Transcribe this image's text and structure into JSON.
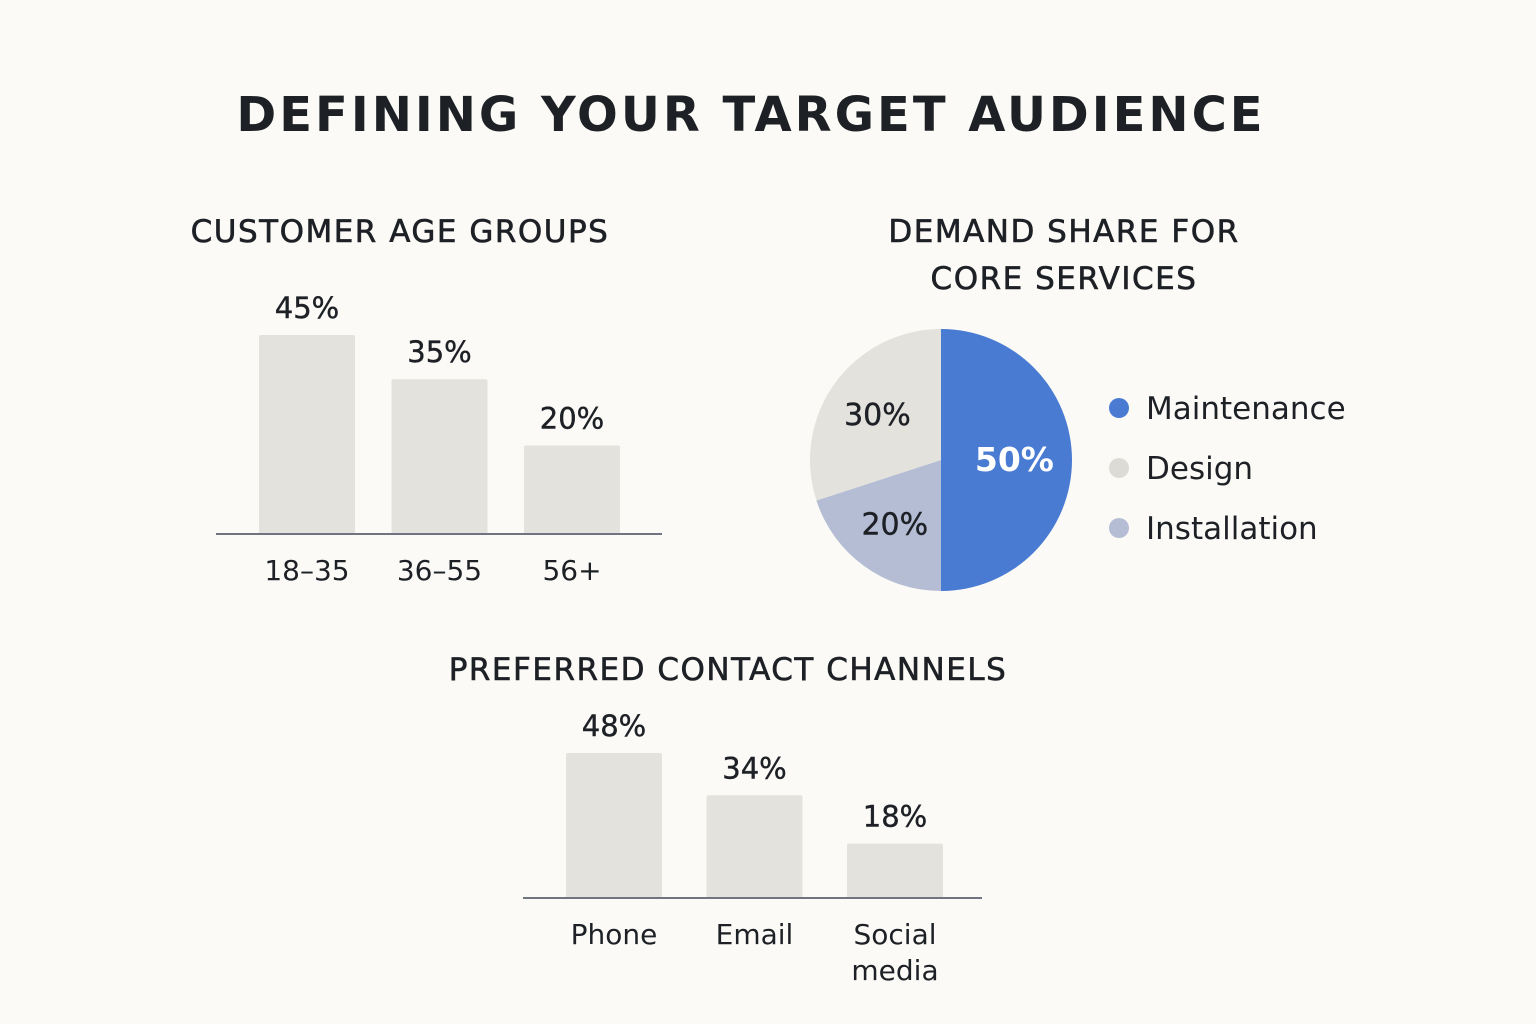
{
  "title": "DEFINING YOUR TARGET AUDIENCE",
  "chart_data": [
    {
      "type": "bar",
      "title": "CUSTOMER AGE GROUPS",
      "categories": [
        "18–35",
        "36–55",
        "56+"
      ],
      "values": [
        45,
        35,
        20
      ],
      "value_labels": [
        "45%",
        "35%",
        "20%"
      ],
      "xlabel": "",
      "ylabel": "",
      "ylim": [
        0,
        45
      ],
      "grid": false,
      "bar_color": "#e3e2dd",
      "axis_color": "#6e7581"
    },
    {
      "type": "pie",
      "title_lines": [
        "DEMAND SHARE FOR",
        "CORE SERVICES"
      ],
      "slices": [
        {
          "name": "Maintenance",
          "value": 50,
          "label": "50%",
          "color": "#4a7bd3"
        },
        {
          "name": "Installation",
          "value": 20,
          "label": "20%",
          "color": "#b5bdd4"
        },
        {
          "name": "Design",
          "value": 30,
          "label": "30%",
          "color": "#e3e2dd"
        }
      ],
      "legend": [
        {
          "name": "Maintenance",
          "color": "#4a7bd3"
        },
        {
          "name": "Design",
          "color": "#dcdbd6"
        },
        {
          "name": "Installation",
          "color": "#b5bdd4"
        }
      ],
      "legend_position": "right"
    },
    {
      "type": "bar",
      "title": "PREFERRED CONTACT CHANNELS",
      "categories": [
        [
          "Phone"
        ],
        [
          "Email"
        ],
        [
          "Social",
          "media"
        ]
      ],
      "values": [
        48,
        34,
        18
      ],
      "value_labels": [
        "48%",
        "34%",
        "18%"
      ],
      "xlabel": "",
      "ylabel": "",
      "ylim": [
        0,
        48
      ],
      "grid": false,
      "bar_color": "#e3e2dd",
      "axis_color": "#6e7581"
    }
  ]
}
